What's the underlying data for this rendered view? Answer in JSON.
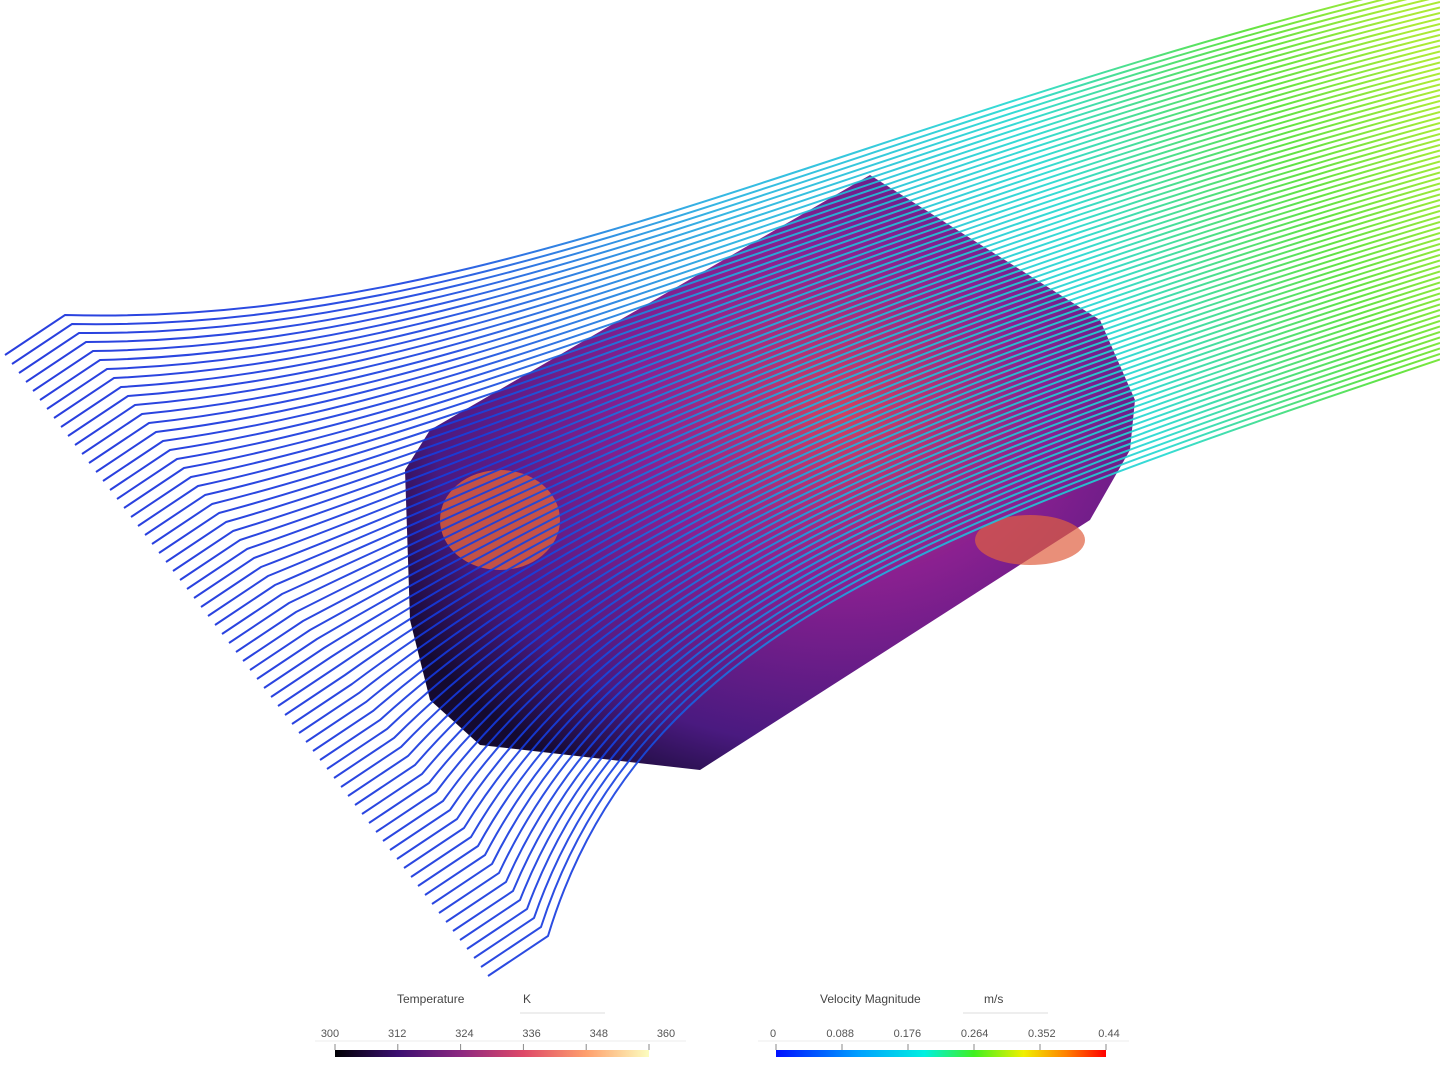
{
  "legends": [
    {
      "title": "Temperature",
      "unit": "K",
      "ticks": [
        300,
        312,
        324,
        336,
        348,
        360
      ]
    },
    {
      "title": "Velocity Magnitude",
      "unit": "m/s",
      "ticks": [
        0,
        0.088,
        0.176,
        0.264,
        0.352,
        0.44
      ]
    }
  ]
}
